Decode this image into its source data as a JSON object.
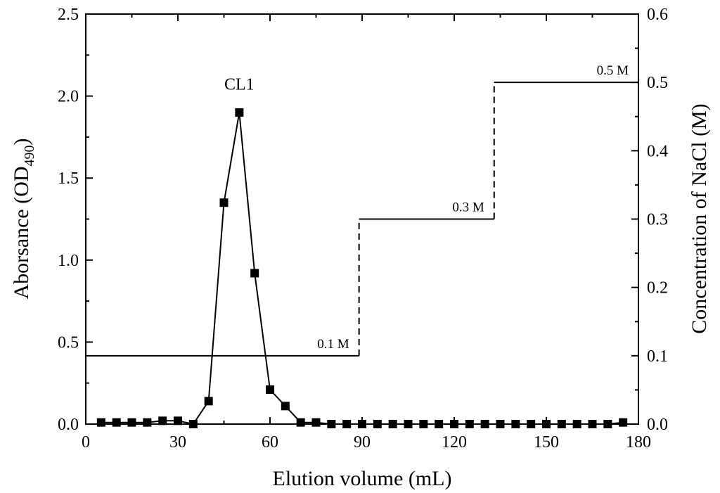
{
  "chart_data": {
    "type": "line",
    "xlabel": "Elution volume (mL)",
    "ylabel_main": "Aborsance (OD",
    "ylabel_sub": "490",
    "ylabel_end": ")",
    "y2label": "Concentration of NaCl (M)",
    "xlim": [
      0,
      180
    ],
    "ylim": [
      0,
      2.5
    ],
    "y2lim": [
      0,
      0.6
    ],
    "x_ticks": [
      "0",
      "30",
      "60",
      "90",
      "120",
      "150",
      "180"
    ],
    "y_ticks": [
      "0.0",
      "0.5",
      "1.0",
      "1.5",
      "2.0",
      "2.5"
    ],
    "y2_ticks": [
      "0.0",
      "0.1",
      "0.2",
      "0.3",
      "0.4",
      "0.5",
      "0.6"
    ],
    "grid": false,
    "series": [
      {
        "axis": "left",
        "marker": "square",
        "x": [
          5,
          10,
          15,
          20,
          25,
          30,
          35,
          40,
          45,
          50,
          55,
          60,
          65,
          70,
          75,
          80,
          85,
          90,
          95,
          100,
          105,
          110,
          115,
          120,
          125,
          130,
          135,
          140,
          145,
          150,
          155,
          160,
          165,
          170,
          175
        ],
        "y": [
          0.01,
          0.01,
          0.01,
          0.01,
          0.02,
          0.02,
          0.0,
          0.14,
          1.35,
          1.9,
          0.92,
          0.21,
          0.11,
          0.01,
          0.01,
          0.0,
          0.0,
          0.0,
          0.0,
          0.0,
          0.0,
          0.0,
          0.0,
          0.0,
          0.0,
          0.0,
          0.0,
          0.0,
          0.0,
          0.0,
          0.0,
          0.0,
          0.0,
          0.0,
          0.01
        ]
      },
      {
        "axis": "right",
        "style": "step",
        "steps": [
          {
            "x0": 0,
            "x1": 89,
            "y": 0.1,
            "label": "0.1 M"
          },
          {
            "x0": 89,
            "x1": 133,
            "y": 0.3,
            "label": "0.3 M"
          },
          {
            "x0": 133,
            "x1": 180,
            "y": 0.5,
            "label": "0.5 M"
          }
        ]
      }
    ],
    "annotations": [
      {
        "text": "CL1",
        "x": 50,
        "y": 2.04
      }
    ]
  }
}
